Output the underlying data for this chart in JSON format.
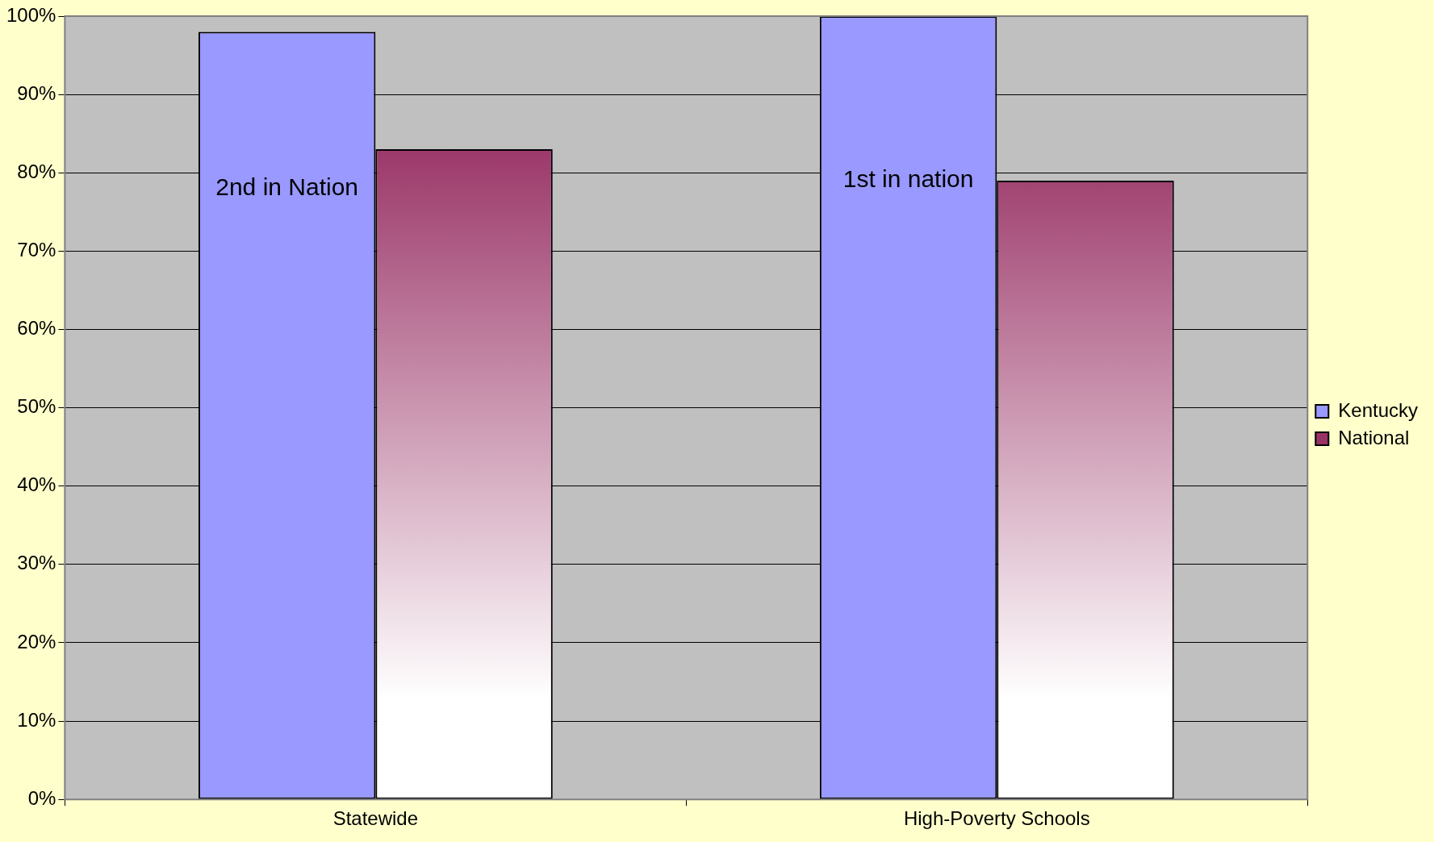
{
  "chart_data": {
    "type": "bar",
    "categories": [
      "Statewide",
      "High-Poverty Schools"
    ],
    "series": [
      {
        "name": "Kentucky",
        "color": "#9999ff",
        "values": [
          98,
          100
        ]
      },
      {
        "name": "National",
        "color": "#993366",
        "values": [
          83,
          79
        ]
      }
    ],
    "ylim": [
      0,
      100
    ],
    "yticks": [
      {
        "value": 0,
        "label": "0%"
      },
      {
        "value": 10,
        "label": "10%"
      },
      {
        "value": 20,
        "label": "20%"
      },
      {
        "value": 30,
        "label": "30%"
      },
      {
        "value": 40,
        "label": "40%"
      },
      {
        "value": 50,
        "label": "50%"
      },
      {
        "value": 60,
        "label": "60%"
      },
      {
        "value": 70,
        "label": "70%"
      },
      {
        "value": 80,
        "label": "80%"
      },
      {
        "value": 90,
        "label": "90%"
      },
      {
        "value": 100,
        "label": "100%"
      }
    ],
    "grid": "y",
    "legend": "right",
    "annotations": [
      {
        "text": "2nd in Nation",
        "x": "Statewide",
        "y": 78
      },
      {
        "text": "1st in nation",
        "x": "High-Poverty Schools",
        "y": 79
      }
    ]
  }
}
